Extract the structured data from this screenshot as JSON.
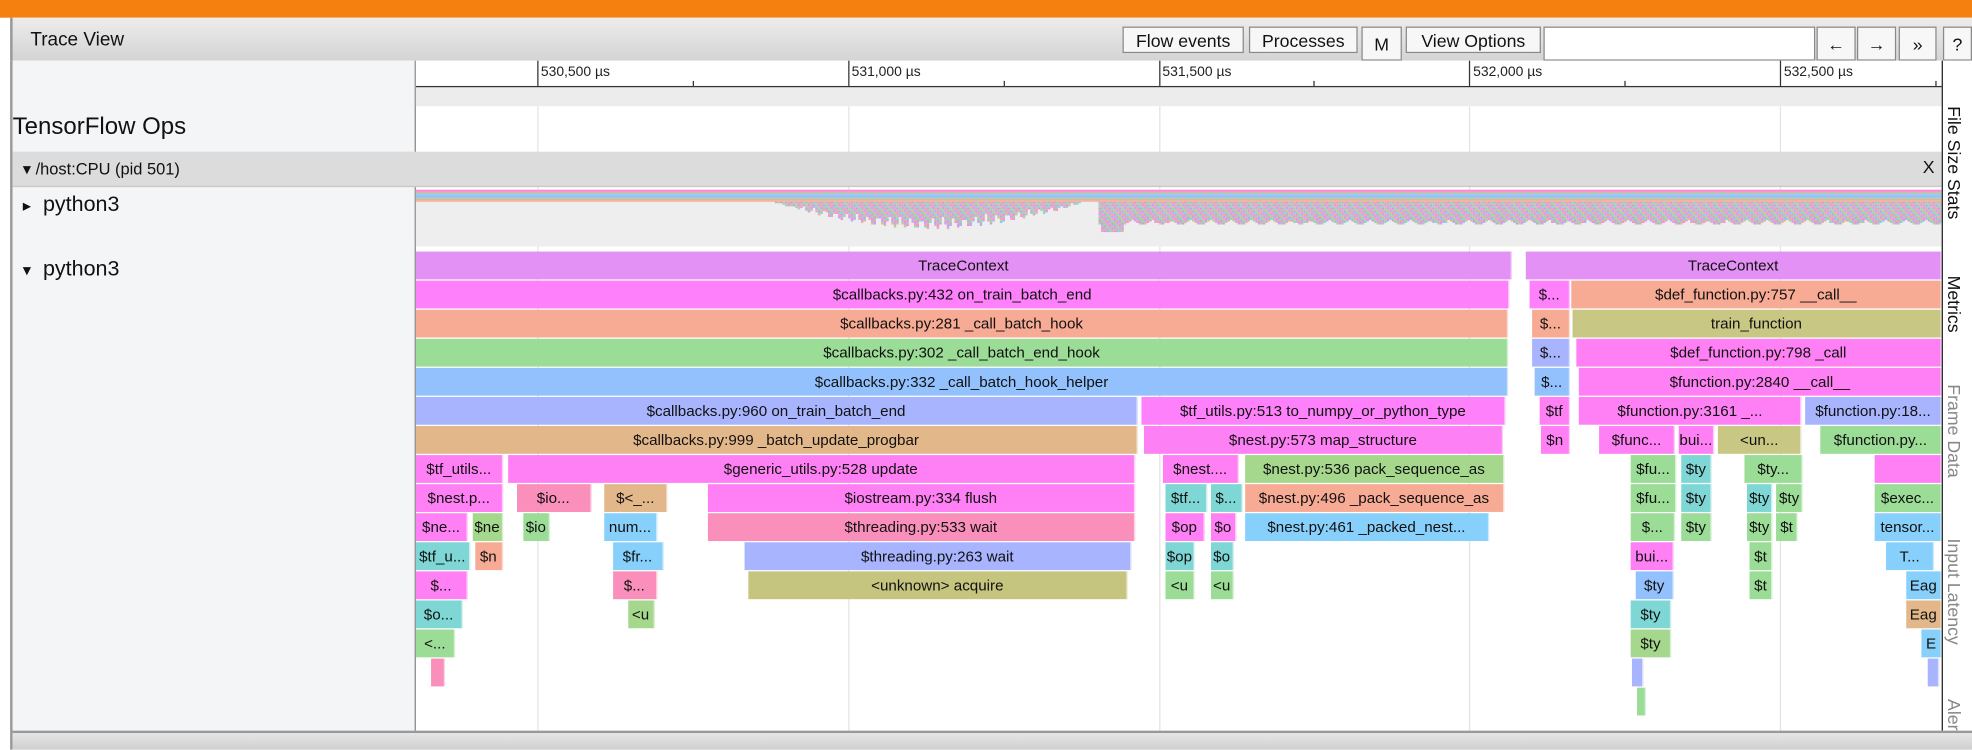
{
  "header": {
    "title": "Trace View",
    "buttons": {
      "flow_events": "Flow events",
      "processes": "Processes",
      "m": "M",
      "view_options": "View Options",
      "prev": "←",
      "next": "→",
      "more": "»",
      "help": "?"
    },
    "search_value": ""
  },
  "accent_color": "#f57f0f",
  "ruler": {
    "unit": "µs",
    "labels": [
      {
        "t": 530500,
        "text": "530,500 µs"
      },
      {
        "t": 531000,
        "text": "531,000 µs"
      },
      {
        "t": 531500,
        "text": "531,500 µs"
      },
      {
        "t": 532000,
        "text": "532,000 µs"
      },
      {
        "t": 532500,
        "text": "532,500 µs"
      }
    ],
    "view_range_us": [
      530305,
      532760
    ],
    "minor_tick_step_us": 250
  },
  "tracks": {
    "tensorflow_ops": "TensorFlow Ops",
    "process": {
      "label": "/host:CPU (pid 501)",
      "close": "X",
      "expanded": true
    },
    "threads": [
      {
        "label": "python3",
        "expanded": false,
        "toggle": "▸"
      },
      {
        "label": "python3",
        "expanded": true,
        "toggle": "▾"
      }
    ]
  },
  "sidebar_tabs": [
    "File Size Stats",
    "Metrics",
    "Frame Data",
    "Input Latency",
    "Aler"
  ],
  "slices": [
    {
      "s": 530305,
      "e": 532069,
      "d": 0,
      "l": "TraceContext",
      "c": "#e391f5"
    },
    {
      "s": 532091,
      "e": 532760,
      "d": 0,
      "l": "TraceContext",
      "c": "#e391f5"
    },
    {
      "s": 530305,
      "e": 532065,
      "d": 1,
      "l": "$callbacks.py:432 on_train_batch_end",
      "c": "#fe80fb"
    },
    {
      "s": 532097,
      "e": 532162,
      "d": 1,
      "l": "$...",
      "c": "#fe80fb"
    },
    {
      "s": 532164,
      "e": 532760,
      "d": 1,
      "l": "$def_function.py:757 __call__",
      "c": "#f8ab94"
    },
    {
      "s": 530305,
      "e": 532063,
      "d": 2,
      "l": "$callbacks.py:281 _call_batch_hook",
      "c": "#f8ab94"
    },
    {
      "s": 532101,
      "e": 532162,
      "d": 2,
      "l": "$...",
      "c": "#f8ab94"
    },
    {
      "s": 532166,
      "e": 532760,
      "d": 2,
      "l": "train_function",
      "c": "#c8c784"
    },
    {
      "s": 530305,
      "e": 532063,
      "d": 3,
      "l": "$callbacks.py:302 _call_batch_end_hook",
      "c": "#9bdc96"
    },
    {
      "s": 532101,
      "e": 532162,
      "d": 3,
      "l": "$...",
      "c": "#a8b4fd"
    },
    {
      "s": 532172,
      "e": 532760,
      "d": 3,
      "l": "$def_function.py:798 _call",
      "c": "#fe80f4"
    },
    {
      "s": 530305,
      "e": 532063,
      "d": 4,
      "l": "$callbacks.py:332 _call_batch_hook_helper",
      "c": "#93c1fd"
    },
    {
      "s": 532105,
      "e": 532162,
      "d": 4,
      "l": "$...",
      "c": "#93c1fd"
    },
    {
      "s": 532177,
      "e": 532760,
      "d": 4,
      "l": "$function.py:2840 __call__",
      "c": "#fe80f4"
    },
    {
      "s": 530305,
      "e": 531466,
      "d": 5,
      "l": "$callbacks.py:960 on_train_batch_end",
      "c": "#a8b4fd"
    },
    {
      "s": 531473,
      "e": 532058,
      "d": 5,
      "l": "$tf_utils.py:513 to_numpy_or_python_type",
      "c": "#fe80fb"
    },
    {
      "s": 532113,
      "e": 532162,
      "d": 5,
      "l": "$tf",
      "c": "#fe80f4"
    },
    {
      "s": 532177,
      "e": 532535,
      "d": 5,
      "l": "$function.py:3161 _...",
      "c": "#fe80f4"
    },
    {
      "s": 532541,
      "e": 532760,
      "d": 5,
      "l": "$function.py:18...",
      "c": "#a8b4fd"
    },
    {
      "s": 530305,
      "e": 531466,
      "d": 6,
      "l": "$callbacks.py:999 _batch_update_progbar",
      "c": "#e2b78a"
    },
    {
      "s": 531477,
      "e": 532054,
      "d": 6,
      "l": "$nest.py:573 map_structure",
      "c": "#fe80f5"
    },
    {
      "s": 532115,
      "e": 532162,
      "d": 6,
      "l": "$n",
      "c": "#fe80f4"
    },
    {
      "s": 532209,
      "e": 532331,
      "d": 6,
      "l": "$func...",
      "c": "#fe80f4"
    },
    {
      "s": 532337,
      "e": 532394,
      "d": 6,
      "l": "bui...",
      "c": "#fe80f4"
    },
    {
      "s": 532400,
      "e": 532535,
      "d": 6,
      "l": "<un...",
      "c": "#c8c784"
    },
    {
      "s": 532565,
      "e": 532760,
      "d": 6,
      "l": "$function.py...",
      "c": "#9bdc96"
    },
    {
      "s": 530305,
      "e": 530445,
      "d": 7,
      "l": "$tf_utils...",
      "c": "#fe80f4"
    },
    {
      "s": 530453,
      "e": 531462,
      "d": 7,
      "l": "$generic_utils.py:528 update",
      "c": "#fe80f4"
    },
    {
      "s": 531507,
      "e": 531629,
      "d": 7,
      "l": "$nest....",
      "c": "#fe80f4"
    },
    {
      "s": 531639,
      "e": 532056,
      "d": 7,
      "l": "$nest.py:536 pack_sequence_as",
      "c": "#a5d88c"
    },
    {
      "s": 532260,
      "e": 532333,
      "d": 7,
      "l": "$fu...",
      "c": "#9bdc96"
    },
    {
      "s": 532341,
      "e": 532390,
      "d": 7,
      "l": "$ty",
      "c": "#7fd7d5"
    },
    {
      "s": 532443,
      "e": 532537,
      "d": 7,
      "l": "$ty...",
      "c": "#9bdc96"
    },
    {
      "s": 532652,
      "e": 532760,
      "d": 7,
      "l": "",
      "c": "#fe80f4"
    },
    {
      "s": 530305,
      "e": 530445,
      "d": 8,
      "l": "$nest.p...",
      "c": "#fe80f4"
    },
    {
      "s": 530467,
      "e": 530587,
      "d": 8,
      "l": "$io...",
      "c": "#f98fba"
    },
    {
      "s": 530608,
      "e": 530710,
      "d": 8,
      "l": "$<_...",
      "c": "#e2b78a"
    },
    {
      "s": 530775,
      "e": 531462,
      "d": 8,
      "l": "$iostream.py:334 flush",
      "c": "#fe80f4"
    },
    {
      "s": 531511,
      "e": 531578,
      "d": 8,
      "l": "$tf...",
      "c": "#7fd7d5"
    },
    {
      "s": 531584,
      "e": 531635,
      "d": 8,
      "l": "$...",
      "c": "#7fd7d5"
    },
    {
      "s": 531639,
      "e": 532056,
      "d": 8,
      "l": "$nest.py:496 _pack_sequence_as",
      "c": "#f8ab94"
    },
    {
      "s": 532260,
      "e": 532333,
      "d": 8,
      "l": "$fu...",
      "c": "#9bdc96"
    },
    {
      "s": 532341,
      "e": 532390,
      "d": 8,
      "l": "$ty",
      "c": "#7fd7d5"
    },
    {
      "s": 532447,
      "e": 532488,
      "d": 8,
      "l": "$ty",
      "c": "#7fd7d5"
    },
    {
      "s": 532494,
      "e": 532537,
      "d": 8,
      "l": "$ty",
      "c": "#9bdc96"
    },
    {
      "s": 532652,
      "e": 532760,
      "d": 8,
      "l": "$exec...",
      "c": "#9bdc96"
    },
    {
      "s": 530305,
      "e": 530388,
      "d": 9,
      "l": "$ne...",
      "c": "#fe80f4"
    },
    {
      "s": 530396,
      "e": 530445,
      "d": 9,
      "l": "$ne",
      "c": "#a5d88c"
    },
    {
      "s": 530478,
      "e": 530520,
      "d": 9,
      "l": "$io",
      "c": "#9bdc96"
    },
    {
      "s": 530608,
      "e": 530693,
      "d": 9,
      "l": "num...",
      "c": "#86d0fb"
    },
    {
      "s": 530775,
      "e": 531462,
      "d": 9,
      "l": "$threading.py:533 wait",
      "c": "#f98fba"
    },
    {
      "s": 531511,
      "e": 531574,
      "d": 9,
      "l": "$op",
      "c": "#fe80f4"
    },
    {
      "s": 531584,
      "e": 531625,
      "d": 9,
      "l": "$o",
      "c": "#fe80f4"
    },
    {
      "s": 531639,
      "e": 532032,
      "d": 9,
      "l": "$nest.py:461 _packed_nest...",
      "c": "#86d0fb"
    },
    {
      "s": 532260,
      "e": 532331,
      "d": 9,
      "l": "$...",
      "c": "#9bdc96"
    },
    {
      "s": 532341,
      "e": 532390,
      "d": 9,
      "l": "$ty",
      "c": "#9bdc96"
    },
    {
      "s": 532447,
      "e": 532488,
      "d": 9,
      "l": "$ty",
      "c": "#9bdc96"
    },
    {
      "s": 532494,
      "e": 532529,
      "d": 9,
      "l": "$t",
      "c": "#9bdc96"
    },
    {
      "s": 532652,
      "e": 532760,
      "d": 9,
      "l": "tensor...",
      "c": "#86d0fb"
    },
    {
      "s": 530305,
      "e": 530392,
      "d": 10,
      "l": "$tf_u...",
      "c": "#7fd7d5"
    },
    {
      "s": 530400,
      "e": 530445,
      "d": 10,
      "l": "$n",
      "c": "#f8ab94"
    },
    {
      "s": 530622,
      "e": 530703,
      "d": 10,
      "l": "$fr...",
      "c": "#86d0fb"
    },
    {
      "s": 530834,
      "e": 531456,
      "d": 10,
      "l": "$threading.py:263 wait",
      "c": "#a8b4fd"
    },
    {
      "s": 531511,
      "e": 531558,
      "d": 10,
      "l": "$op",
      "c": "#7fd7d5"
    },
    {
      "s": 531584,
      "e": 531621,
      "d": 10,
      "l": "$o",
      "c": "#7fd7d5"
    },
    {
      "s": 532260,
      "e": 532329,
      "d": 10,
      "l": "bui...",
      "c": "#fe80f4"
    },
    {
      "s": 532451,
      "e": 532488,
      "d": 10,
      "l": "$t",
      "c": "#9bdc96"
    },
    {
      "s": 532671,
      "e": 532748,
      "d": 10,
      "l": "T...",
      "c": "#86d0fb"
    },
    {
      "s": 530305,
      "e": 530388,
      "d": 11,
      "l": "$...",
      "c": "#fe80f4"
    },
    {
      "s": 530622,
      "e": 530693,
      "d": 11,
      "l": "$...",
      "c": "#f98fba"
    },
    {
      "s": 530840,
      "e": 531450,
      "d": 11,
      "l": "<unknown> acquire",
      "c": "#c5c57f"
    },
    {
      "s": 531511,
      "e": 531558,
      "d": 11,
      "l": "<u",
      "c": "#9bdc96"
    },
    {
      "s": 531584,
      "e": 531621,
      "d": 11,
      "l": "<u",
      "c": "#9bdc96"
    },
    {
      "s": 532268,
      "e": 532329,
      "d": 11,
      "l": "$ty",
      "c": "#93c1fd"
    },
    {
      "s": 532451,
      "e": 532488,
      "d": 11,
      "l": "$t",
      "c": "#9bdc96"
    },
    {
      "s": 532703,
      "e": 532760,
      "d": 11,
      "l": "Eag",
      "c": "#86d0fb"
    },
    {
      "s": 530305,
      "e": 530380,
      "d": 12,
      "l": "$o...",
      "c": "#7fd7d5"
    },
    {
      "s": 530646,
      "e": 530689,
      "d": 12,
      "l": "<u",
      "c": "#a5d88c"
    },
    {
      "s": 532260,
      "e": 532325,
      "d": 12,
      "l": "$ty",
      "c": "#7fd7d5"
    },
    {
      "s": 532703,
      "e": 532760,
      "d": 12,
      "l": "Eag",
      "c": "#e2b78a"
    },
    {
      "s": 530305,
      "e": 530368,
      "d": 13,
      "l": "<...",
      "c": "#9bdc96"
    },
    {
      "s": 532260,
      "e": 532325,
      "d": 13,
      "l": "$ty",
      "c": "#a5d88c"
    },
    {
      "s": 532728,
      "e": 532760,
      "d": 13,
      "l": "E",
      "c": "#86d0fb"
    },
    {
      "s": 530330,
      "e": 530352,
      "d": 14,
      "l": "",
      "c": "#f98fba"
    },
    {
      "s": 532262,
      "e": 532280,
      "d": 14,
      "l": "",
      "c": "#a8b4fd"
    },
    {
      "s": 532738,
      "e": 532755,
      "d": 14,
      "l": "",
      "c": "#a8b4fd"
    },
    {
      "s": 532270,
      "e": 532285,
      "d": 15,
      "l": "",
      "c": "#9bdc96"
    }
  ]
}
